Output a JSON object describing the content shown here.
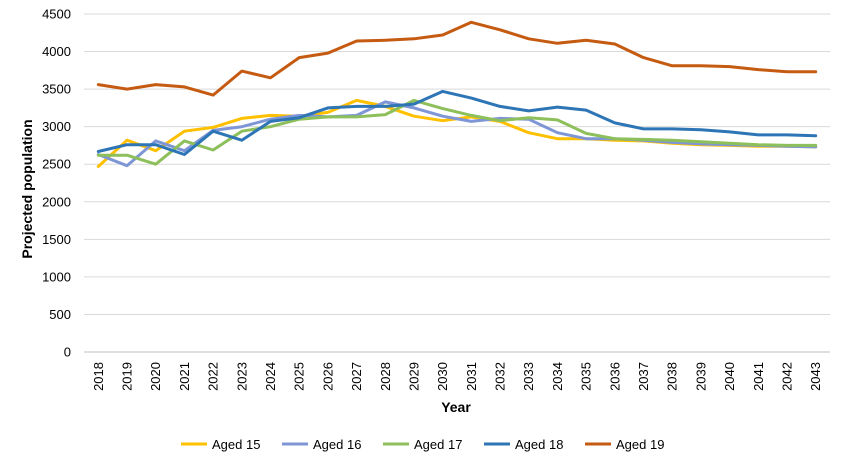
{
  "chart_data": {
    "type": "line",
    "xlabel": "Year",
    "ylabel": "Projected population",
    "ylim": [
      0,
      4500
    ],
    "yticks": [
      0,
      500,
      1000,
      1500,
      2000,
      2500,
      3000,
      3500,
      4000,
      4500
    ],
    "grid": "horizontal",
    "legend_position": "bottom",
    "categories": [
      "2018",
      "2019",
      "2020",
      "2021",
      "2022",
      "2023",
      "2024",
      "2025",
      "2026",
      "2027",
      "2028",
      "2029",
      "2030",
      "2031",
      "2032",
      "2033",
      "2034",
      "2035",
      "2036",
      "2037",
      "2038",
      "2039",
      "2040",
      "2041",
      "2042",
      "2043"
    ],
    "series": [
      {
        "name": "Aged 15",
        "color": "#FFC000",
        "values": [
          2470,
          2820,
          2680,
          2940,
          2990,
          3110,
          3150,
          3140,
          3190,
          3350,
          3270,
          3140,
          3080,
          3130,
          3070,
          2920,
          2840,
          2840,
          2820,
          2810,
          2780,
          2760,
          2750,
          2740,
          2740,
          2730
        ]
      },
      {
        "name": "Aged 16",
        "color": "#7F96D6",
        "values": [
          2630,
          2480,
          2810,
          2680,
          2950,
          3000,
          3100,
          3150,
          3130,
          3150,
          3330,
          3250,
          3140,
          3070,
          3110,
          3100,
          2920,
          2840,
          2840,
          2820,
          2790,
          2770,
          2760,
          2750,
          2740,
          2730
        ]
      },
      {
        "name": "Aged 17",
        "color": "#8DBF5B",
        "values": [
          2620,
          2620,
          2500,
          2810,
          2690,
          2940,
          3000,
          3100,
          3130,
          3130,
          3160,
          3350,
          3240,
          3150,
          3080,
          3120,
          3090,
          2910,
          2840,
          2830,
          2820,
          2800,
          2780,
          2760,
          2750,
          2750
        ]
      },
      {
        "name": "Aged 18",
        "color": "#2E75B6",
        "values": [
          2670,
          2760,
          2760,
          2630,
          2940,
          2820,
          3070,
          3120,
          3250,
          3270,
          3270,
          3300,
          3470,
          3380,
          3270,
          3210,
          3260,
          3220,
          3050,
          2970,
          2970,
          2960,
          2930,
          2890,
          2890,
          2880
        ]
      },
      {
        "name": "Aged 19",
        "color": "#C55A11",
        "values": [
          3560,
          3500,
          3560,
          3530,
          3420,
          3740,
          3650,
          3920,
          3980,
          4140,
          4150,
          4170,
          4220,
          4390,
          4290,
          4170,
          4110,
          4150,
          4100,
          3920,
          3810,
          3810,
          3800,
          3760,
          3730,
          3730
        ]
      }
    ]
  }
}
